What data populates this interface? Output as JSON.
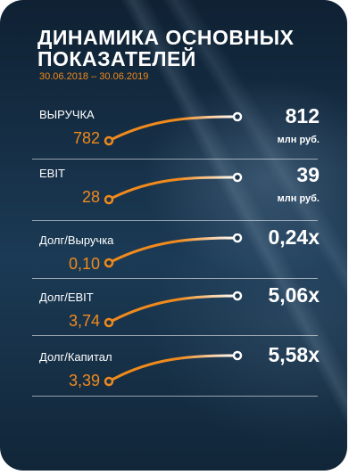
{
  "title_line1": "ДИНАМИКА ОСНОВНЫХ",
  "title_line2": "ПОКАЗАТЕЛЕЙ",
  "period": "30.06.2018 – 30.06.2019",
  "accent_color": "#f08a1c",
  "rows": [
    {
      "label": "ВЫРУЧКА",
      "from": "782",
      "to": "812",
      "unit": "млн руб."
    },
    {
      "label": "EBIT",
      "from": "28",
      "to": "39",
      "unit": "млн руб."
    },
    {
      "label": "Долг/Выручка",
      "from": "0,10",
      "to": "0,24x",
      "unit": ""
    },
    {
      "label": "Долг/EBIT",
      "from": "3,74",
      "to": "5,06x",
      "unit": ""
    },
    {
      "label": "Долг/Капитал",
      "from": "3,39",
      "to": "5,58x",
      "unit": ""
    }
  ]
}
